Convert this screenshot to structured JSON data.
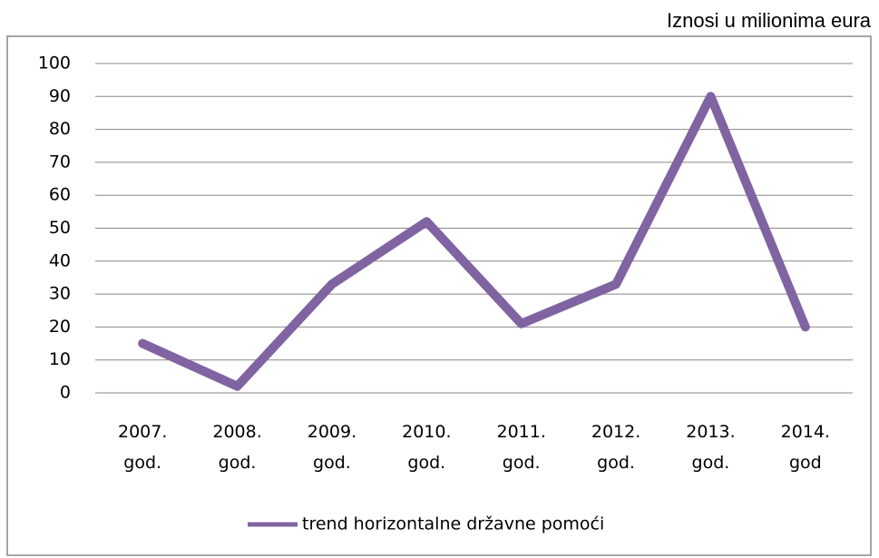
{
  "chart_data": {
    "type": "line",
    "title": "Iznosi u milionima eura",
    "categories": [
      "2007. god.",
      "2008. god.",
      "2009. god.",
      "2010. god.",
      "2011. god.",
      "2012. god.",
      "2013. god.",
      "2014. god"
    ],
    "series": [
      {
        "name": "trend horizontalne državne pomoći",
        "color": "#8064a2",
        "values": [
          15,
          2,
          33,
          52,
          21,
          33,
          90,
          20
        ]
      }
    ],
    "ylim": [
      0,
      100
    ],
    "yticks": [
      0,
      10,
      20,
      30,
      40,
      50,
      60,
      70,
      80,
      90,
      100
    ],
    "grid": true,
    "legend": "bottom"
  }
}
